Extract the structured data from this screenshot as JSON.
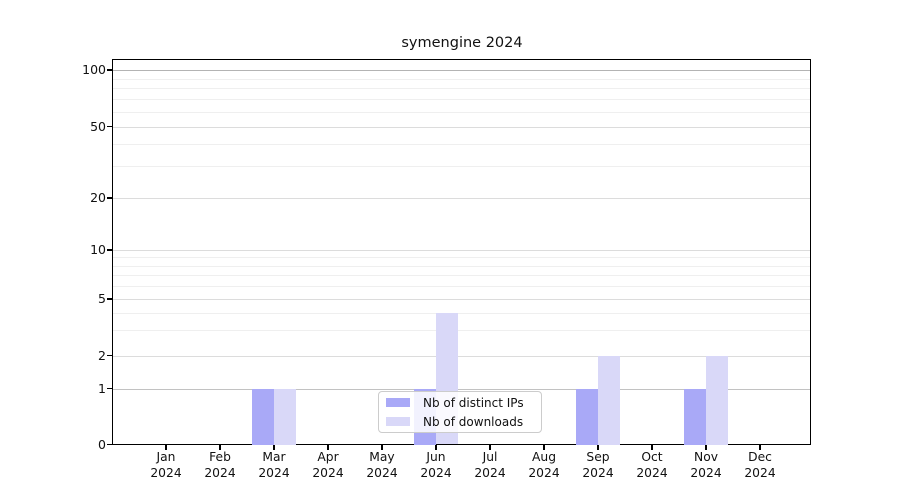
{
  "chart_data": {
    "type": "bar",
    "title": "symengine 2024",
    "categories": [
      "Jan",
      "Feb",
      "Mar",
      "Apr",
      "May",
      "Jun",
      "Jul",
      "Aug",
      "Sep",
      "Oct",
      "Nov",
      "Dec"
    ],
    "category_year": "2024",
    "series": [
      {
        "name": "Nb of distinct IPs",
        "color": "#a9a9f7",
        "values": [
          0,
          0,
          1,
          0,
          0,
          1,
          0,
          0,
          1,
          0,
          1,
          0
        ]
      },
      {
        "name": "Nb of downloads",
        "color": "#d9d8f8",
        "values": [
          0,
          0,
          1,
          0,
          0,
          4,
          0,
          0,
          2,
          0,
          2,
          0
        ]
      }
    ],
    "xlabel": "",
    "ylabel": "",
    "yscale": "symlog-like",
    "ylim": [
      0,
      105
    ],
    "yticks": [
      0,
      1,
      2,
      5,
      10,
      20,
      50,
      100
    ],
    "yticks_minor": [
      3,
      4,
      6,
      7,
      8,
      9,
      30,
      40,
      60,
      70,
      80,
      90
    ],
    "grid": true,
    "legend_position": "lower center",
    "colors": {
      "grid_major_strong": "#b3b3b3",
      "grid_major_one": "#c2c2c2",
      "grid_major": "#dcdcdc",
      "grid_minor": "#efefef",
      "axis": "#000000",
      "text": "#111111"
    }
  }
}
